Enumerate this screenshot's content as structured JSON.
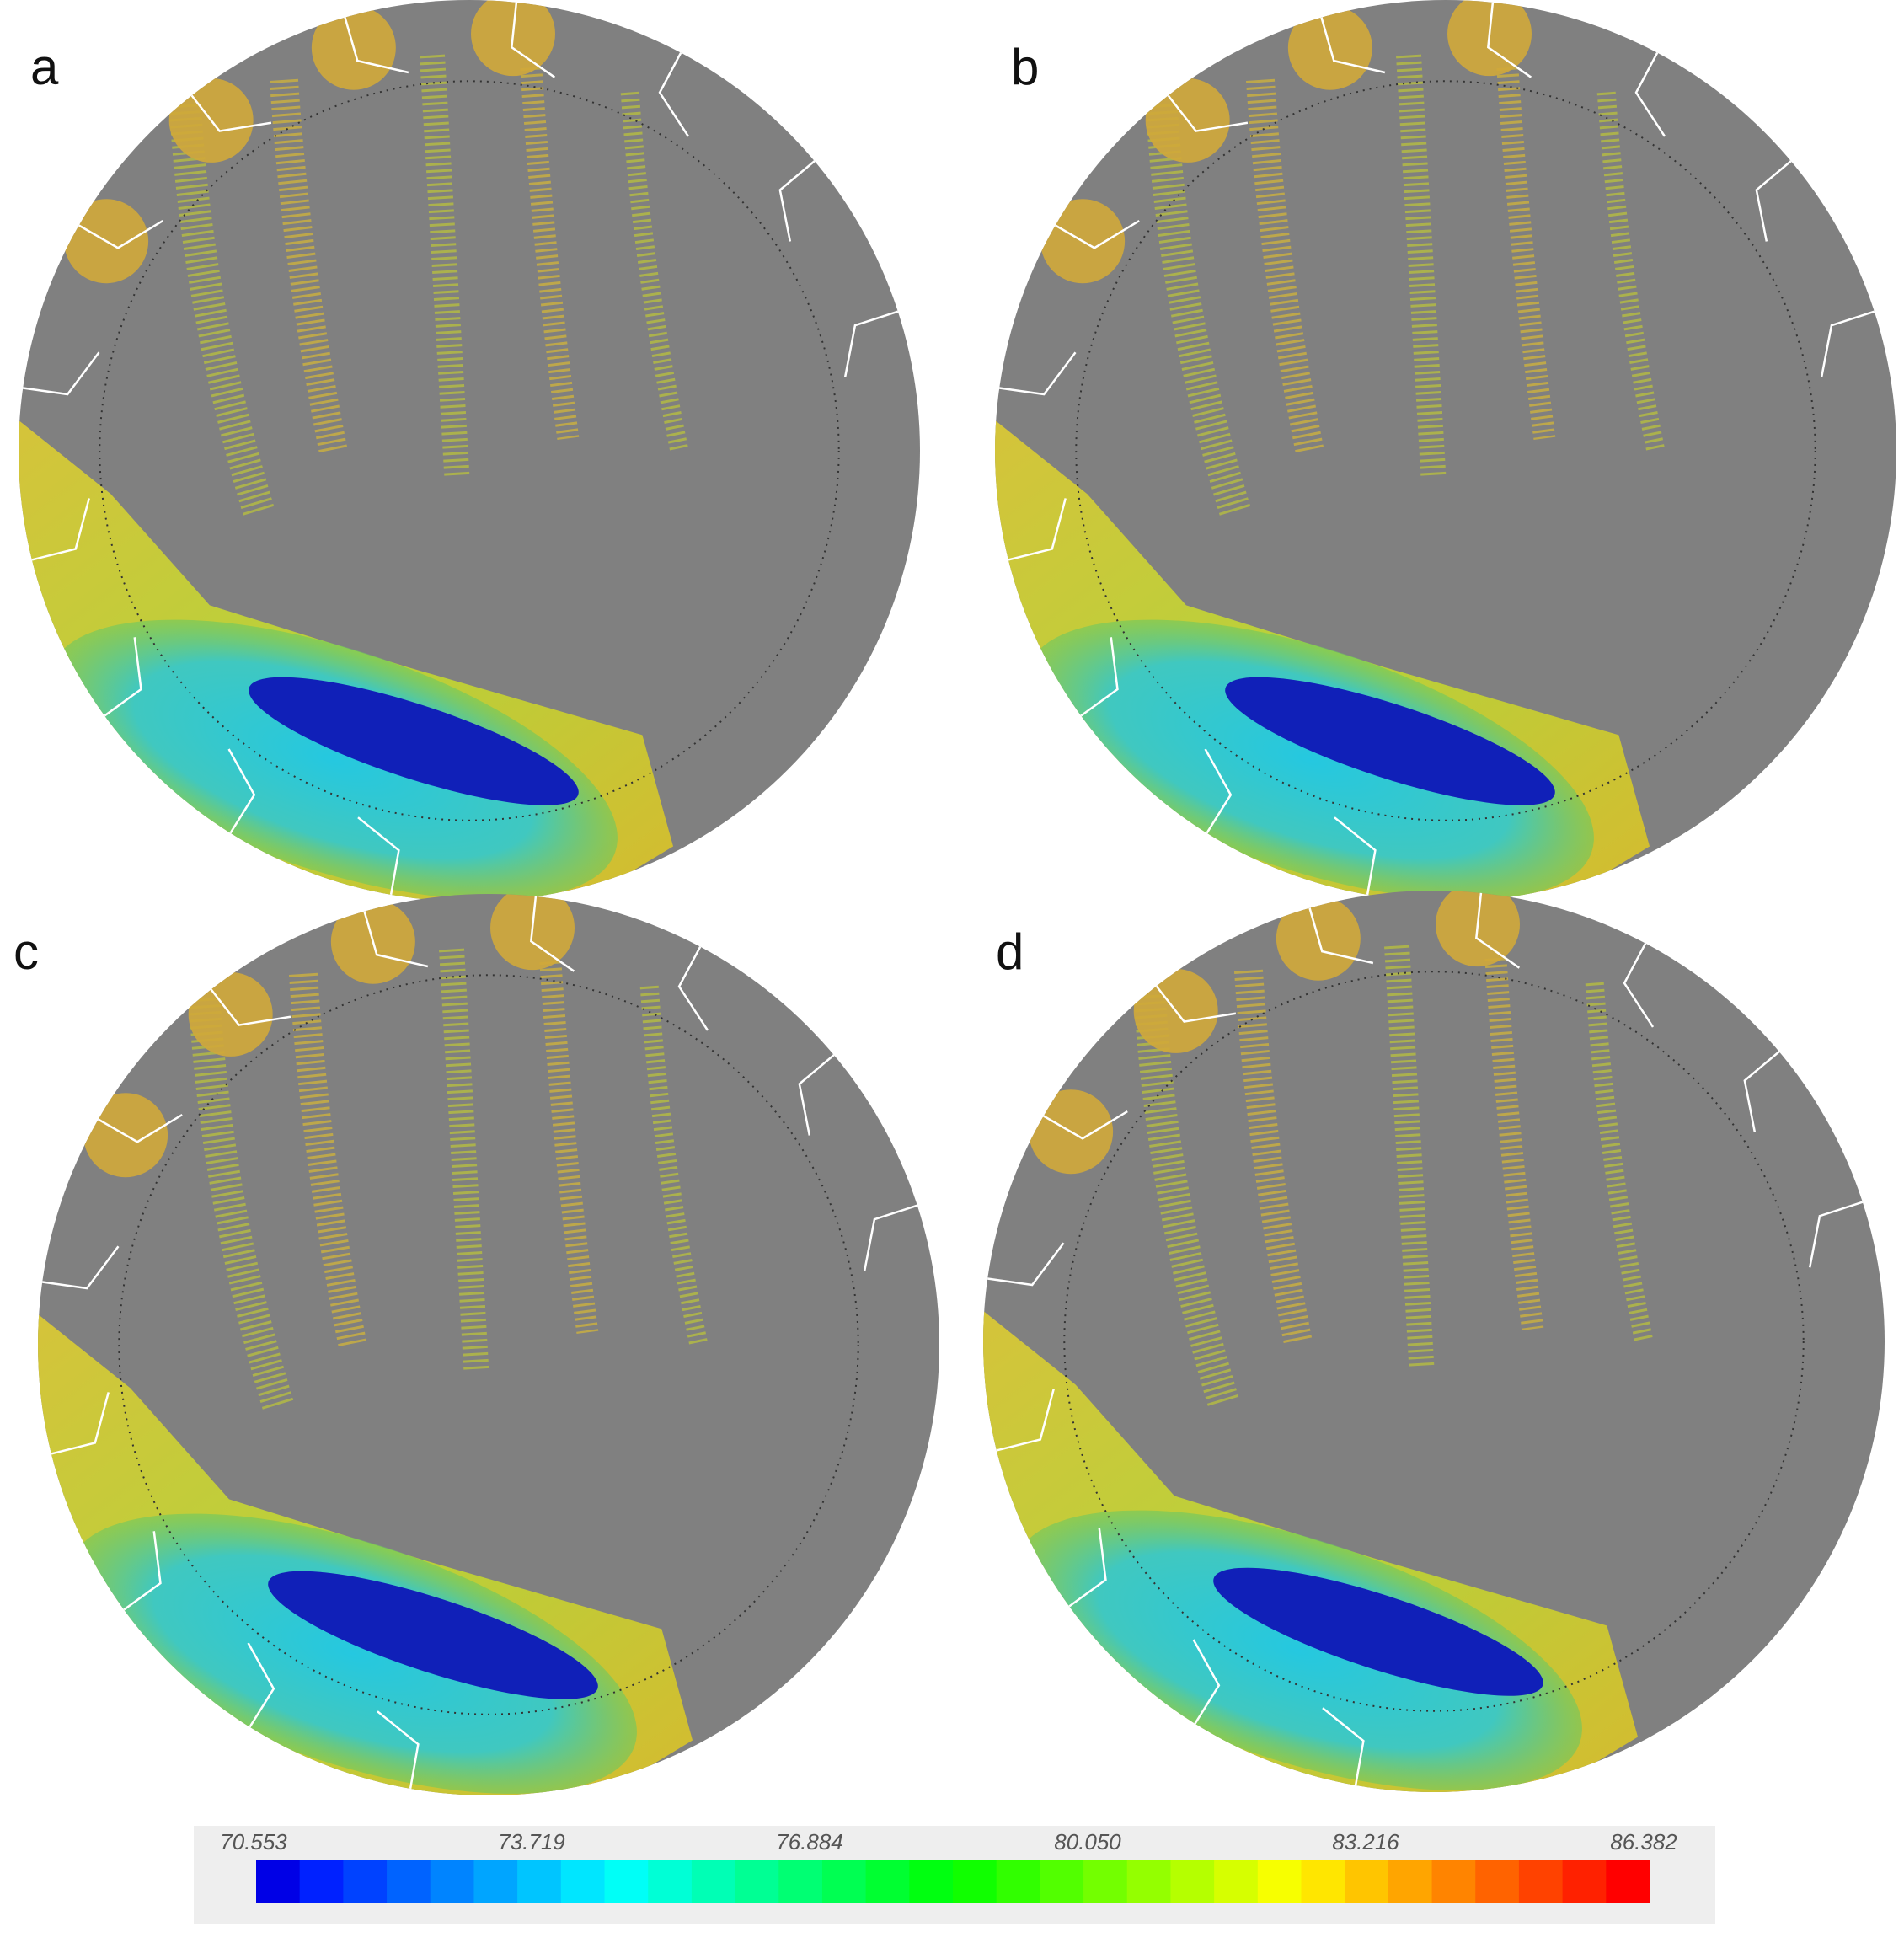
{
  "panels": [
    {
      "label": "a"
    },
    {
      "label": "b"
    },
    {
      "label": "c"
    },
    {
      "label": "d"
    }
  ],
  "colorbar": {
    "labels": [
      "70.553",
      "73.719",
      "76.884",
      "80.050",
      "83.216",
      "86.382"
    ]
  }
}
